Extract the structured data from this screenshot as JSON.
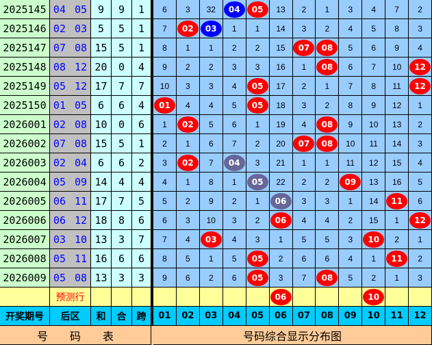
{
  "colors": {
    "red": "#ff0000",
    "blue": "#0000ff",
    "gray": "#666699"
  },
  "rows": [
    {
      "period": "2025145",
      "back": "04 05",
      "sum": "9",
      "mod": "9",
      "span": "1",
      "cells": [
        {
          "v": "6"
        },
        {
          "v": "3"
        },
        {
          "v": "32"
        },
        {
          "v": "04",
          "ball": "blue"
        },
        {
          "v": "05",
          "ball": "red"
        },
        {
          "v": "13"
        },
        {
          "v": "2"
        },
        {
          "v": "1"
        },
        {
          "v": "3"
        },
        {
          "v": "4"
        },
        {
          "v": "7"
        },
        {
          "v": "2"
        }
      ]
    },
    {
      "period": "2025146",
      "back": "02 03",
      "sum": "5",
      "mod": "5",
      "span": "1",
      "cells": [
        {
          "v": "7"
        },
        {
          "v": "02",
          "ball": "red"
        },
        {
          "v": "03",
          "ball": "blue"
        },
        {
          "v": "1"
        },
        {
          "v": "1"
        },
        {
          "v": "14"
        },
        {
          "v": "3"
        },
        {
          "v": "2"
        },
        {
          "v": "4"
        },
        {
          "v": "5"
        },
        {
          "v": "8"
        },
        {
          "v": "3"
        }
      ]
    },
    {
      "period": "2025147",
      "back": "07 08",
      "sum": "15",
      "mod": "5",
      "span": "1",
      "cells": [
        {
          "v": "8"
        },
        {
          "v": "1"
        },
        {
          "v": "1"
        },
        {
          "v": "2"
        },
        {
          "v": "2"
        },
        {
          "v": "15"
        },
        {
          "v": "07",
          "ball": "red"
        },
        {
          "v": "08",
          "ball": "red"
        },
        {
          "v": "5"
        },
        {
          "v": "6"
        },
        {
          "v": "9"
        },
        {
          "v": "4"
        }
      ]
    },
    {
      "period": "2025148",
      "back": "08 12",
      "sum": "20",
      "mod": "0",
      "span": "4",
      "cells": [
        {
          "v": "9"
        },
        {
          "v": "2"
        },
        {
          "v": "2"
        },
        {
          "v": "3"
        },
        {
          "v": "3"
        },
        {
          "v": "16"
        },
        {
          "v": "1"
        },
        {
          "v": "08",
          "ball": "red"
        },
        {
          "v": "6"
        },
        {
          "v": "7"
        },
        {
          "v": "10"
        },
        {
          "v": "12",
          "ball": "red"
        }
      ]
    },
    {
      "period": "2025149",
      "back": "05 12",
      "sum": "17",
      "mod": "7",
      "span": "7",
      "cells": [
        {
          "v": "10"
        },
        {
          "v": "3"
        },
        {
          "v": "3"
        },
        {
          "v": "4"
        },
        {
          "v": "05",
          "ball": "red"
        },
        {
          "v": "17"
        },
        {
          "v": "2"
        },
        {
          "v": "1"
        },
        {
          "v": "7"
        },
        {
          "v": "8"
        },
        {
          "v": "11"
        },
        {
          "v": "12",
          "ball": "red"
        }
      ]
    },
    {
      "period": "2025150",
      "back": "01 05",
      "sum": "6",
      "mod": "6",
      "span": "4",
      "cells": [
        {
          "v": "01",
          "ball": "red"
        },
        {
          "v": "4"
        },
        {
          "v": "4"
        },
        {
          "v": "5"
        },
        {
          "v": "05",
          "ball": "red"
        },
        {
          "v": "18"
        },
        {
          "v": "3"
        },
        {
          "v": "2"
        },
        {
          "v": "8"
        },
        {
          "v": "9"
        },
        {
          "v": "12"
        },
        {
          "v": "1"
        }
      ]
    },
    {
      "period": "2026001",
      "back": "02 08",
      "sum": "10",
      "mod": "0",
      "span": "6",
      "cells": [
        {
          "v": "1"
        },
        {
          "v": "02",
          "ball": "red"
        },
        {
          "v": "5"
        },
        {
          "v": "6"
        },
        {
          "v": "1"
        },
        {
          "v": "19"
        },
        {
          "v": "4"
        },
        {
          "v": "08",
          "ball": "red"
        },
        {
          "v": "9"
        },
        {
          "v": "10"
        },
        {
          "v": "13"
        },
        {
          "v": "2"
        }
      ]
    },
    {
      "period": "2026002",
      "back": "07 08",
      "sum": "15",
      "mod": "5",
      "span": "1",
      "cells": [
        {
          "v": "2"
        },
        {
          "v": "1"
        },
        {
          "v": "6"
        },
        {
          "v": "7"
        },
        {
          "v": "2"
        },
        {
          "v": "20"
        },
        {
          "v": "07",
          "ball": "red"
        },
        {
          "v": "08",
          "ball": "red"
        },
        {
          "v": "10"
        },
        {
          "v": "11"
        },
        {
          "v": "14"
        },
        {
          "v": "3"
        }
      ]
    },
    {
      "period": "2026003",
      "back": "02 04",
      "sum": "6",
      "mod": "6",
      "span": "2",
      "cells": [
        {
          "v": "3"
        },
        {
          "v": "02",
          "ball": "red"
        },
        {
          "v": "7"
        },
        {
          "v": "04",
          "ball": "gray"
        },
        {
          "v": "3"
        },
        {
          "v": "21"
        },
        {
          "v": "1"
        },
        {
          "v": "1"
        },
        {
          "v": "11"
        },
        {
          "v": "12"
        },
        {
          "v": "15"
        },
        {
          "v": "4"
        }
      ]
    },
    {
      "period": "2026004",
      "back": "05 09",
      "sum": "14",
      "mod": "4",
      "span": "4",
      "cells": [
        {
          "v": "4"
        },
        {
          "v": "1"
        },
        {
          "v": "8"
        },
        {
          "v": "1"
        },
        {
          "v": "05",
          "ball": "gray"
        },
        {
          "v": "22"
        },
        {
          "v": "2"
        },
        {
          "v": "2"
        },
        {
          "v": "09",
          "ball": "red"
        },
        {
          "v": "13"
        },
        {
          "v": "16"
        },
        {
          "v": "5"
        }
      ]
    },
    {
      "period": "2026005",
      "back": "06 11",
      "sum": "17",
      "mod": "7",
      "span": "5",
      "cells": [
        {
          "v": "5"
        },
        {
          "v": "2"
        },
        {
          "v": "9"
        },
        {
          "v": "2"
        },
        {
          "v": "1"
        },
        {
          "v": "06",
          "ball": "gray"
        },
        {
          "v": "3"
        },
        {
          "v": "3"
        },
        {
          "v": "1"
        },
        {
          "v": "14"
        },
        {
          "v": "11",
          "ball": "red"
        },
        {
          "v": "6"
        }
      ]
    },
    {
      "period": "2026006",
      "back": "06 12",
      "sum": "18",
      "mod": "8",
      "span": "6",
      "cells": [
        {
          "v": "6"
        },
        {
          "v": "3"
        },
        {
          "v": "10"
        },
        {
          "v": "3"
        },
        {
          "v": "2"
        },
        {
          "v": "06",
          "ball": "red"
        },
        {
          "v": "4"
        },
        {
          "v": "4"
        },
        {
          "v": "2"
        },
        {
          "v": "15"
        },
        {
          "v": "1"
        },
        {
          "v": "12",
          "ball": "red"
        }
      ]
    },
    {
      "period": "2026007",
      "back": "03 10",
      "sum": "13",
      "mod": "3",
      "span": "7",
      "cells": [
        {
          "v": "7"
        },
        {
          "v": "4"
        },
        {
          "v": "03",
          "ball": "red"
        },
        {
          "v": "4"
        },
        {
          "v": "3"
        },
        {
          "v": "1"
        },
        {
          "v": "5"
        },
        {
          "v": "5"
        },
        {
          "v": "3"
        },
        {
          "v": "10",
          "ball": "red"
        },
        {
          "v": "2"
        },
        {
          "v": "1"
        }
      ]
    },
    {
      "period": "2026008",
      "back": "05 11",
      "sum": "16",
      "mod": "6",
      "span": "6",
      "cells": [
        {
          "v": "8"
        },
        {
          "v": "5"
        },
        {
          "v": "1"
        },
        {
          "v": "5"
        },
        {
          "v": "05",
          "ball": "red"
        },
        {
          "v": "2"
        },
        {
          "v": "6"
        },
        {
          "v": "6"
        },
        {
          "v": "4"
        },
        {
          "v": "1"
        },
        {
          "v": "11",
          "ball": "red"
        },
        {
          "v": "2"
        }
      ]
    },
    {
      "period": "2026009",
      "back": "05 08",
      "sum": "13",
      "mod": "3",
      "span": "3",
      "cells": [
        {
          "v": "9"
        },
        {
          "v": "6"
        },
        {
          "v": "2"
        },
        {
          "v": "6"
        },
        {
          "v": "05",
          "ball": "red"
        },
        {
          "v": "3"
        },
        {
          "v": "7"
        },
        {
          "v": "08",
          "ball": "red"
        },
        {
          "v": "5"
        },
        {
          "v": "2"
        },
        {
          "v": "1"
        },
        {
          "v": "3"
        }
      ]
    }
  ],
  "prediction": {
    "label": "预测行",
    "cells": [
      {
        "v": ""
      },
      {
        "v": ""
      },
      {
        "v": ""
      },
      {
        "v": ""
      },
      {
        "v": ""
      },
      {
        "v": "06",
        "ball": "red"
      },
      {
        "v": ""
      },
      {
        "v": ""
      },
      {
        "v": ""
      },
      {
        "v": "10",
        "ball": "red"
      },
      {
        "v": ""
      },
      {
        "v": ""
      }
    ]
  },
  "header": {
    "period": "开奖期号",
    "back": "后区",
    "sum": "和",
    "mod": "合",
    "span": "跨",
    "numbers": [
      "01",
      "02",
      "03",
      "04",
      "05",
      "06",
      "07",
      "08",
      "09",
      "10",
      "11",
      "12"
    ]
  },
  "footer": {
    "left": "号　　码　　表",
    "right": "号码综合显示分布图"
  }
}
